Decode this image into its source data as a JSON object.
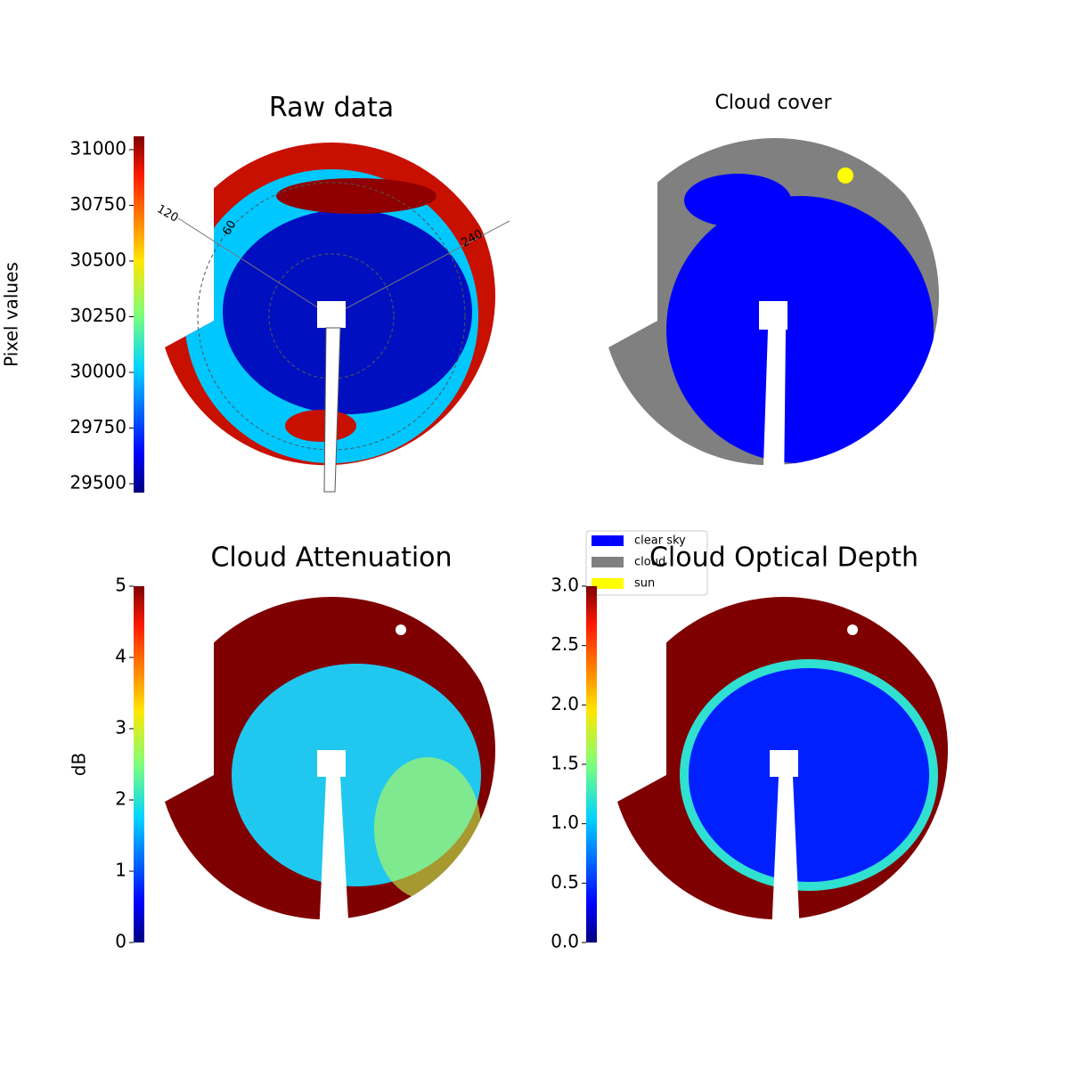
{
  "chart_data": [
    {
      "type": "image",
      "title": "Raw data",
      "colorbar": {
        "label": "Pixel values",
        "lim": [
          29460,
          31060
        ],
        "ticks": [
          29500,
          29750,
          30000,
          30250,
          30500,
          30750,
          31000
        ]
      },
      "polar_labels": [
        "120",
        "60",
        "240"
      ]
    },
    {
      "type": "image",
      "title": "Cloud cover",
      "legend": [
        {
          "name": "clear sky",
          "color": "#0000ff"
        },
        {
          "name": "cloud",
          "color": "#808080"
        },
        {
          "name": "sun",
          "color": "#ffff00"
        }
      ]
    },
    {
      "type": "image",
      "title": "Cloud Attenuation",
      "colorbar": {
        "label": "dB",
        "lim": [
          0,
          5
        ],
        "ticks": [
          0,
          1,
          2,
          3,
          4,
          5
        ]
      }
    },
    {
      "type": "image",
      "title": "Cloud Optical Depth",
      "colorbar": {
        "lim": [
          0,
          3
        ],
        "ticks": [
          {
            "value": 0,
            "label": "0.0"
          },
          0.5,
          {
            "value": 1,
            "label": "1.0"
          },
          1.5,
          {
            "value": 2,
            "label": "2.0"
          },
          2.5,
          {
            "value": 3,
            "label": "3.0"
          }
        ]
      }
    }
  ]
}
